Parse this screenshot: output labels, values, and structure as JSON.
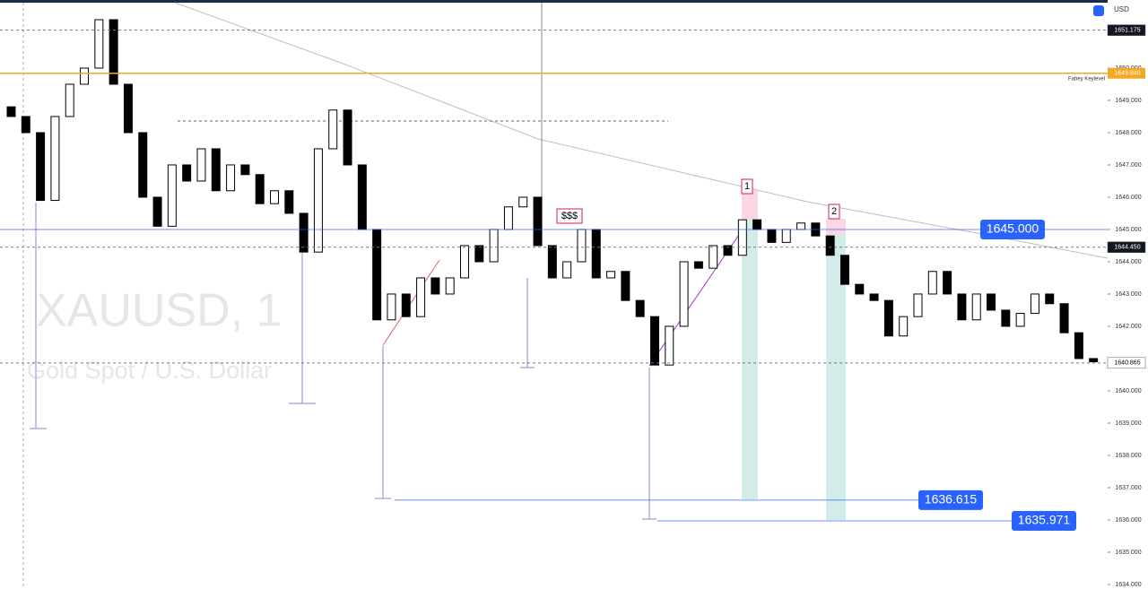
{
  "chart_data": {
    "type": "candlestick",
    "currency": "USD",
    "watermark": {
      "symbol": "XAUUSD, 1",
      "description": "Gold Spot / U.S. Dollar"
    },
    "open": [
      1648.8,
      1648.5,
      1648,
      1645.9,
      1648.5,
      1649.5,
      1650,
      1651.5,
      1649.5,
      1648,
      1646,
      1645.1,
      1647,
      1646.5,
      1647.5,
      1646.2,
      1647,
      1646.7,
      1645.8,
      1646.2,
      1645.5,
      1644.3,
      1647.5,
      1648.7,
      1647,
      1645,
      1642.2,
      1643,
      1642.3,
      1643.5,
      1643,
      1643.5,
      1644.5,
      1644,
      1645,
      1645.7,
      1646,
      1644.5,
      1643.5,
      1644,
      1645,
      1643.5,
      1643.7,
      1642.8,
      1642.3,
      1640.8,
      1642,
      1644,
      1643.8,
      1644.5,
      1644.2,
      1645.3,
      1645,
      1644.6,
      1645,
      1645.2,
      1644.8,
      1644.2,
      1643.3,
      1643,
      1642.8,
      1641.7,
      1642.3,
      1643,
      1643.7,
      1643,
      1642.2,
      1643,
      1642.5,
      1642,
      1642.4,
      1643,
      1642.7,
      1641.8,
      1641
    ],
    "close": [
      1648.5,
      1648,
      1645.9,
      1648.5,
      1649.5,
      1650,
      1651.5,
      1649.5,
      1648,
      1646,
      1645.1,
      1647,
      1646.5,
      1647.5,
      1646.2,
      1647,
      1646.7,
      1645.8,
      1646.2,
      1645.5,
      1644.3,
      1647.5,
      1648.7,
      1647,
      1645,
      1642.2,
      1643,
      1642.3,
      1643.5,
      1643,
      1643.5,
      1644.5,
      1644,
      1645,
      1645.7,
      1646,
      1644.5,
      1643.5,
      1644,
      1645,
      1643.5,
      1643.7,
      1642.8,
      1642.3,
      1640.8,
      1642,
      1644,
      1643.8,
      1644.5,
      1644.2,
      1645.3,
      1645,
      1644.6,
      1645,
      1645.2,
      1644.8,
      1644.2,
      1643.3,
      1643,
      1642.8,
      1641.7,
      1642.3,
      1643,
      1643.7,
      1643,
      1642.2,
      1643,
      1642.5,
      1642,
      1642.4,
      1643,
      1642.7,
      1641.8,
      1641,
      1640.9
    ],
    "up_color": "#ffffff",
    "down_color": "#000000",
    "ylim": [
      1633.86,
      1652.11
    ],
    "yticks": [
      {
        "value": 1650,
        "label": "1650.000"
      },
      {
        "value": 1649,
        "label": "1649.000"
      },
      {
        "value": 1648,
        "label": "1648.000"
      },
      {
        "value": 1647,
        "label": "1647.000"
      },
      {
        "value": 1646,
        "label": "1646.000"
      },
      {
        "value": 1645,
        "label": "1645.000"
      },
      {
        "value": 1644,
        "label": "1644.000"
      },
      {
        "value": 1643,
        "label": "1643.000"
      },
      {
        "value": 1642,
        "label": "1642.000"
      },
      {
        "value": 1640,
        "label": "1640.000"
      },
      {
        "value": 1639,
        "label": "1639.000"
      },
      {
        "value": 1638,
        "label": "1638.000"
      },
      {
        "value": 1637,
        "label": "1637.000"
      },
      {
        "value": 1636,
        "label": "1636.000"
      },
      {
        "value": 1635,
        "label": "1635.000"
      },
      {
        "value": 1634,
        "label": "1634.000"
      }
    ],
    "price_labels": [
      {
        "value": 1651.175,
        "label": "1651.175",
        "color": "#131722"
      },
      {
        "value": 1644.45,
        "label": "1644.450",
        "color": "#131722"
      },
      {
        "value": 1640.865,
        "label": "1640.865",
        "color": "#ffffff"
      }
    ],
    "key_level": {
      "value": 1649.84,
      "label": "1649.840",
      "name": "Fabey Keylevel",
      "color": "#f5a623"
    },
    "targets": [
      {
        "value": 1645,
        "label": "1645.000"
      },
      {
        "value": 1636.615,
        "label": "1636.615"
      },
      {
        "value": 1635.971,
        "label": "1635.971"
      }
    ],
    "target_color": "#2962ff",
    "annotations": [
      "$$$",
      "1",
      "2"
    ]
  }
}
